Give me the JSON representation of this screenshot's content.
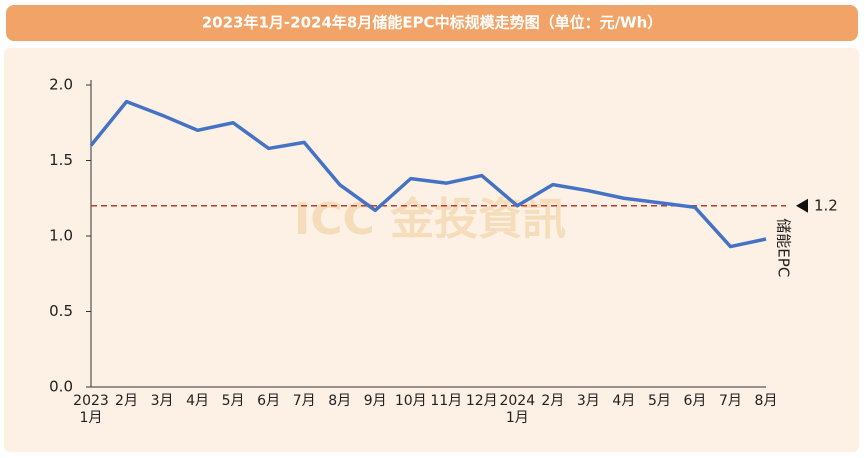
{
  "chart_data": {
    "type": "line",
    "title": "2023年1月-2024年8月储能EPC中标规模走势图（单位：元/Wh）",
    "categories": [
      "2023\n1月",
      "2月",
      "3月",
      "4月",
      "5月",
      "6月",
      "7月",
      "8月",
      "9月",
      "10月",
      "11月",
      "12月",
      "2024\n1月",
      "2月",
      "3月",
      "4月",
      "5月",
      "6月",
      "7月",
      "8月"
    ],
    "series": [
      {
        "name": "储能EPC",
        "color": "#4472c4",
        "values": [
          1.6,
          1.89,
          1.8,
          1.7,
          1.75,
          1.58,
          1.62,
          1.34,
          1.17,
          1.38,
          1.35,
          1.4,
          1.2,
          1.34,
          1.3,
          1.25,
          1.22,
          1.19,
          0.93,
          0.98
        ]
      }
    ],
    "ylim": [
      0,
      2
    ],
    "yticks": [
      {
        "value": 0,
        "label": "0.0"
      },
      {
        "value": 0.5,
        "label": "0.5"
      },
      {
        "value": 1,
        "label": "1.0"
      },
      {
        "value": 1.5,
        "label": "1.5"
      },
      {
        "value": 2,
        "label": "2.0"
      }
    ],
    "reference_line": {
      "value": 1.2,
      "color": "#c0392b"
    },
    "watermark": "ICC 金投資訊"
  }
}
